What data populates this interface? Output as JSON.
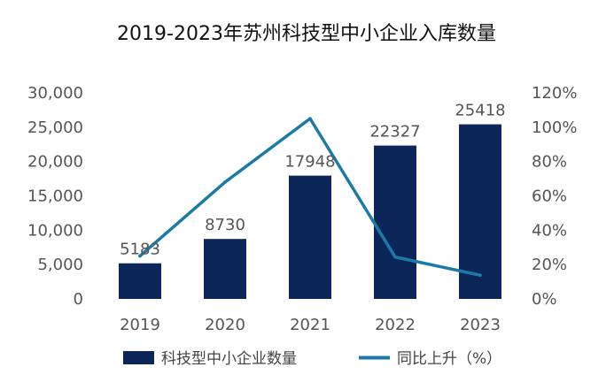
{
  "chart_data": {
    "type": "bar+line",
    "title": "2019-2023年苏州科技型中小企业入库数量",
    "categories": [
      "2019",
      "2020",
      "2021",
      "2022",
      "2023"
    ],
    "series": [
      {
        "name": "科技型中小企业数量",
        "kind": "bar",
        "axis": "left",
        "values": [
          5183,
          8730,
          17948,
          22327,
          25418
        ]
      },
      {
        "name": "同比上升（%）",
        "kind": "line",
        "axis": "right",
        "values": [
          25,
          68,
          105,
          24.4,
          13.8
        ]
      }
    ],
    "left_axis": {
      "min": 0,
      "max": 30000,
      "ticks": [
        "0",
        "5,000",
        "10,000",
        "15,000",
        "20,000",
        "25,000",
        "30,000"
      ]
    },
    "right_axis": {
      "min": 0,
      "max": 120,
      "ticks": [
        "0%",
        "20%",
        "40%",
        "60%",
        "80%",
        "100%",
        "120%"
      ]
    },
    "legend_position": "bottom",
    "colors": {
      "bar": "#0c2659",
      "line": "#1b7aa6"
    }
  }
}
